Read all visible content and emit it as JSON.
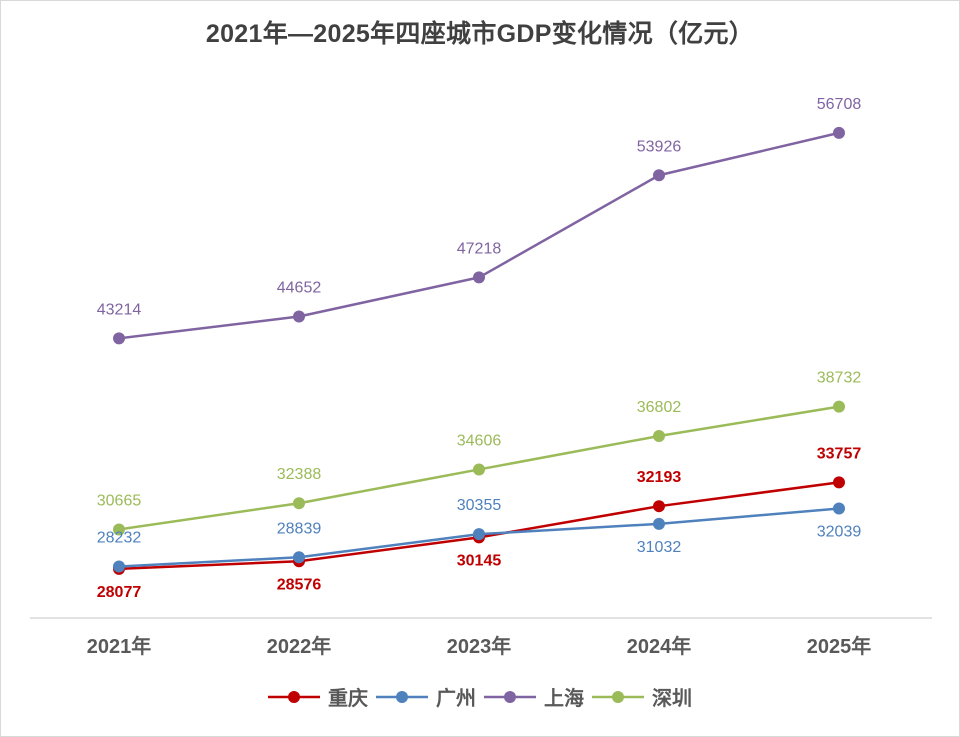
{
  "chart_data": {
    "type": "line",
    "title": "2021年—2025年四座城市GDP变化情况（亿元）",
    "xlabel": "",
    "ylabel": "",
    "categories": [
      "2021年",
      "2022年",
      "2023年",
      "2024年",
      "2025年"
    ],
    "ylim": [
      24850,
      59000
    ],
    "grid": false,
    "legend_position": "bottom",
    "series": [
      {
        "name": "重庆",
        "color": "#C00000",
        "values": [
          28077,
          28576,
          30145,
          32193,
          33757
        ],
        "label_pos": [
          "below",
          "below",
          "below",
          "above",
          "above"
        ]
      },
      {
        "name": "广州",
        "color": "#4F81BD",
        "values": [
          28232,
          28839,
          30355,
          31032,
          32039
        ],
        "label_pos": [
          "above",
          "above",
          "above",
          "below",
          "below"
        ]
      },
      {
        "name": "上海",
        "color": "#8064A2",
        "values": [
          43214,
          44652,
          47218,
          53926,
          56708
        ],
        "label_pos": [
          "above",
          "above",
          "above",
          "above",
          "above"
        ]
      },
      {
        "name": "深圳",
        "color": "#9BBB59",
        "values": [
          30665,
          32388,
          34606,
          36802,
          38732
        ],
        "label_pos": [
          "above",
          "above",
          "above",
          "above",
          "above"
        ]
      }
    ]
  }
}
